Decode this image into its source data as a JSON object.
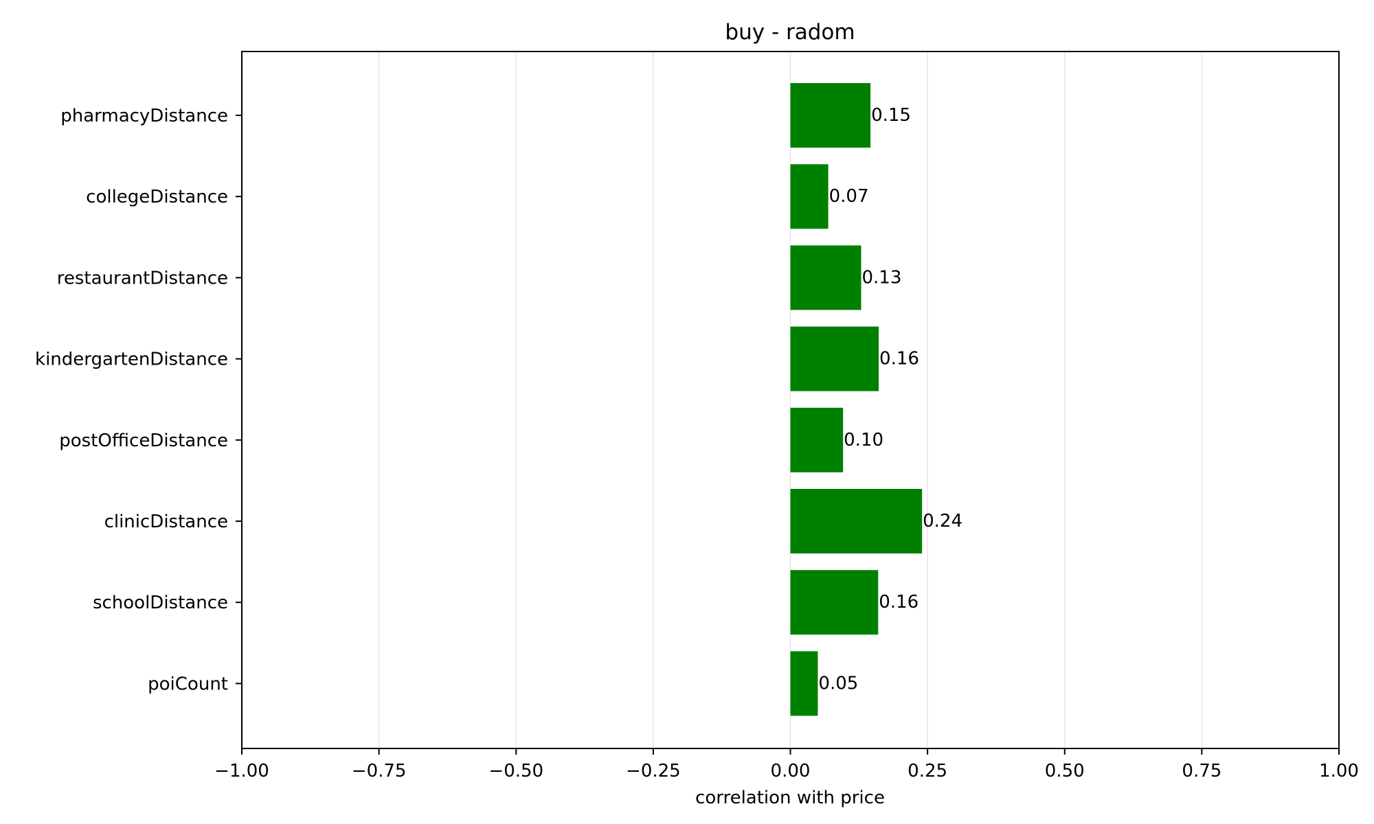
{
  "chart_data": {
    "type": "bar",
    "orientation": "horizontal",
    "title": "buy - radom",
    "xlabel": "correlation with price",
    "ylabel": "",
    "categories": [
      "pharmacyDistance",
      "collegeDistance",
      "restaurantDistance",
      "kindergartenDistance",
      "postOfficeDistance",
      "clinicDistance",
      "schoolDistance",
      "poiCount"
    ],
    "values": [
      0.146,
      0.069,
      0.129,
      0.161,
      0.096,
      0.24,
      0.16,
      0.05
    ],
    "data_labels": [
      "0.15",
      "0.07",
      "0.13",
      "0.16",
      "0.10",
      "0.24",
      "0.16",
      "0.05"
    ],
    "xlim": [
      -1.0,
      1.0
    ],
    "xticks": [
      -1.0,
      -0.75,
      -0.5,
      -0.25,
      0.0,
      0.25,
      0.5,
      0.75,
      1.0
    ],
    "xtick_labels": [
      "−1.00",
      "−0.75",
      "−0.50",
      "−0.25",
      "0.00",
      "0.25",
      "0.50",
      "0.75",
      "1.00"
    ],
    "grid": "vertical",
    "bar_color": "#008000",
    "grid_color": "#e6e6e6"
  }
}
